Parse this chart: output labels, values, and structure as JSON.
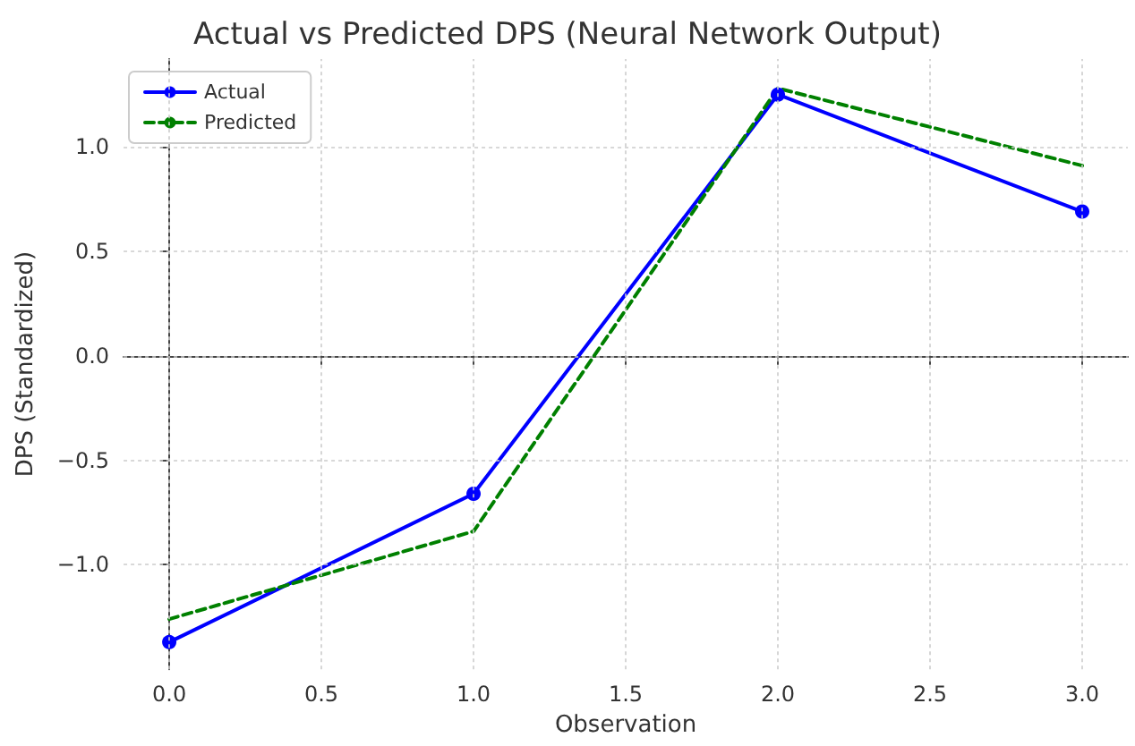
{
  "chart_data": {
    "type": "line",
    "title": "Actual vs Predicted DPS (Neural Network Output)",
    "xlabel": "Observation",
    "ylabel": "DPS (Standardized)",
    "x": [
      0,
      1,
      2,
      3
    ],
    "series": [
      {
        "name": "Actual",
        "color": "#0000ff",
        "values": [
          -1.37,
          -0.66,
          1.25,
          0.69
        ],
        "marker": "circle",
        "line_style": "solid"
      },
      {
        "name": "Predicted",
        "color": "#008000",
        "values": [
          -1.26,
          -0.84,
          1.28,
          0.91
        ],
        "marker": "none",
        "line_style": "dashed"
      }
    ],
    "xlim": [
      -0.15,
      3.15
    ],
    "xticks": [
      {
        "value": 0,
        "label": "0.0"
      },
      {
        "value": 0.5,
        "label": "0.5"
      },
      {
        "value": 1,
        "label": "1.0"
      },
      {
        "value": 1.5,
        "label": "1.5"
      },
      {
        "value": 2,
        "label": "2.0"
      },
      {
        "value": 2.5,
        "label": "2.5"
      },
      {
        "value": 3,
        "label": "3.0"
      }
    ],
    "ylim": [
      -1.5,
      1.42
    ],
    "yticks": [
      {
        "value": -1,
        "label": "−1.0"
      },
      {
        "value": -0.5,
        "label": "−0.5"
      },
      {
        "value": 0,
        "label": "0.0"
      },
      {
        "value": 0.5,
        "label": "0.5"
      },
      {
        "value": 1,
        "label": "1.0"
      }
    ],
    "grid": true,
    "legend": "top left"
  }
}
